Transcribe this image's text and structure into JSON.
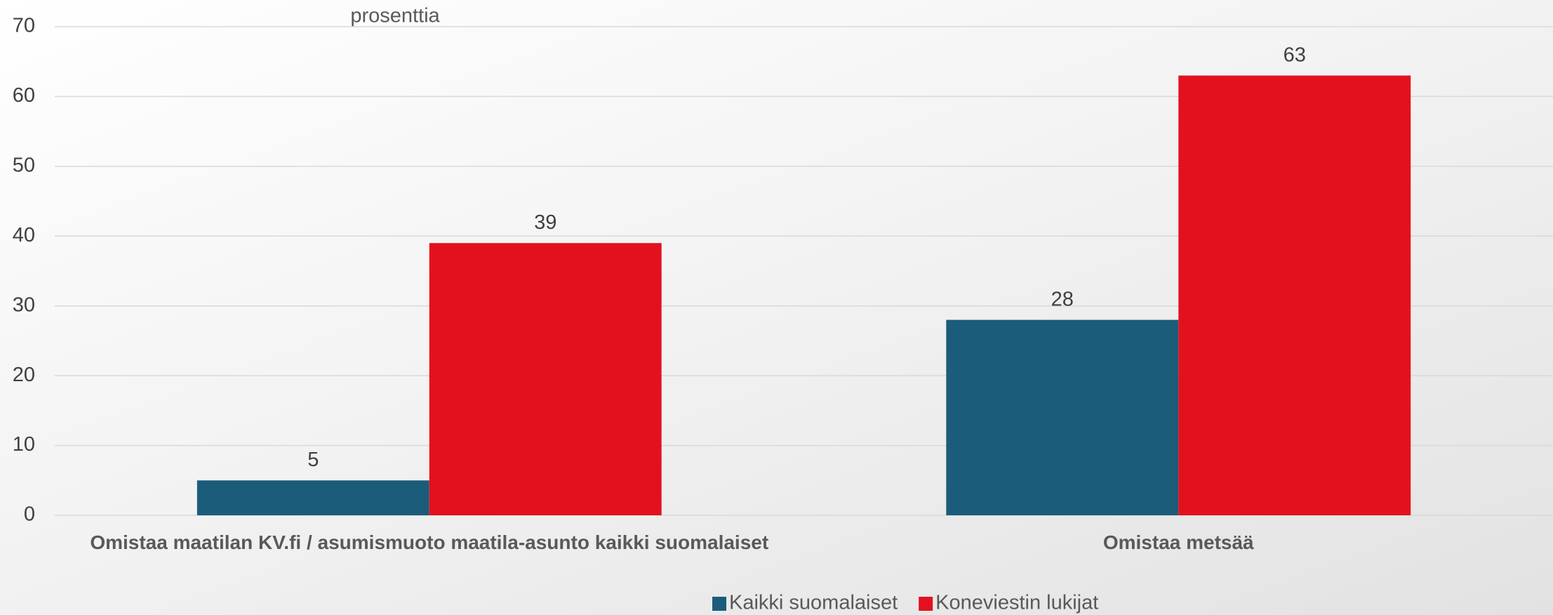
{
  "chart_data": {
    "type": "bar",
    "title": "prosenttia",
    "categories": [
      "Omistaa maatilan  KV.fi / asumismuoto maatila-asunto kaikki suomalaiset",
      "Omistaa metsää"
    ],
    "series": [
      {
        "name": "Kaikki suomalaiset",
        "color": "#1b5c7a",
        "values": [
          5,
          28
        ]
      },
      {
        "name": "Koneviestin lukijat",
        "color": "#e3111e",
        "values": [
          39,
          63
        ]
      }
    ],
    "ylim": [
      0,
      70
    ],
    "yticks": [
      0,
      10,
      20,
      30,
      40,
      50,
      60,
      70
    ],
    "grid": true,
    "legend": "bottom"
  }
}
